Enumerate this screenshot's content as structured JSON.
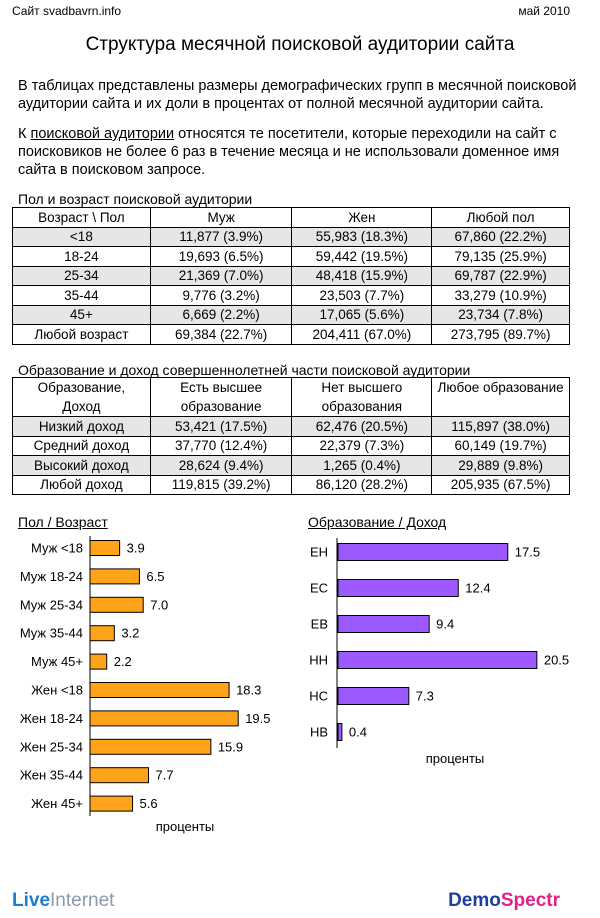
{
  "header": {
    "site": "Сайт svadbavrn.info",
    "date": "май 2010",
    "title": "Структура месячной поисковой аудитории сайта"
  },
  "intro": "В таблицах представлены размеры демографических групп в месячной поисковой аудитории сайта и их доли в процентах от полной месячной аудитории сайта.",
  "definition": {
    "prefix": "К ",
    "term": "поисковой аудитории",
    "rest": " относятся те посетители, которые переходили на сайт с поисковиков не более 6 раз в течение месяца и не использовали доменное имя сайта в поисковом запросе."
  },
  "table1": {
    "title": "Пол и возраст поисковой аудитории",
    "headers": [
      "Возраст \\ Пол",
      "Муж",
      "Жен",
      "Любой пол"
    ],
    "rows": [
      [
        "<18",
        "11,877 (3.9%)",
        "55,983 (18.3%)",
        "67,860 (22.2%)"
      ],
      [
        "18-24",
        "19,693 (6.5%)",
        "59,442 (19.5%)",
        "79,135 (25.9%)"
      ],
      [
        "25-34",
        "21,369 (7.0%)",
        "48,418 (15.9%)",
        "69,787 (22.9%)"
      ],
      [
        "35-44",
        "9,776 (3.2%)",
        "23,503 (7.7%)",
        "33,279 (10.9%)"
      ],
      [
        "45+",
        "6,669 (2.2%)",
        "17,065 (5.6%)",
        "23,734 (7.8%)"
      ],
      [
        "Любой возраст",
        "69,384 (22.7%)",
        "204,411 (67.0%)",
        "273,795 (89.7%)"
      ]
    ]
  },
  "table2": {
    "title": "Образование и доход совершеннолетней части поисковой аудитории",
    "headers": [
      [
        "Образование,",
        "Доход"
      ],
      [
        "Есть высшее",
        "образование"
      ],
      [
        "Нет высшего",
        "образования"
      ],
      [
        "Любое образование",
        ""
      ]
    ],
    "rows": [
      [
        "Низкий доход",
        "53,421 (17.5%)",
        "62,476 (20.5%)",
        "115,897 (38.0%)"
      ],
      [
        "Средний доход",
        "37,770 (12.4%)",
        "22,379 (7.3%)",
        "60,149 (19.7%)"
      ],
      [
        "Высокий доход",
        "28,624 (9.4%)",
        "1,265 (0.4%)",
        "29,889 (9.8%)"
      ],
      [
        "Любой доход",
        "119,815 (39.2%)",
        "86,120 (28.2%)",
        "205,935 (67.5%)"
      ]
    ]
  },
  "chart_data": [
    {
      "type": "bar",
      "orientation": "horizontal",
      "title": "Пол / Возраст",
      "xlabel": "проценты",
      "categories": [
        "Муж <18",
        "Муж 18-24",
        "Муж 25-34",
        "Муж 35-44",
        "Муж 45+",
        "Жен <18",
        "Жен 18-24",
        "Жен 25-34",
        "Жен 35-44",
        "Жен 45+"
      ],
      "values": [
        3.9,
        6.5,
        7.0,
        3.2,
        2.2,
        18.3,
        19.5,
        15.9,
        7.7,
        5.6
      ],
      "value_labels": [
        "3.9",
        "6.5",
        "7.0",
        "3.2",
        "2.2",
        "18.3",
        "19.5",
        "15.9",
        "7.7",
        "5.6"
      ],
      "xlim": [
        0,
        20
      ],
      "color": "#ffa31a"
    },
    {
      "type": "bar",
      "orientation": "horizontal",
      "title": "Образование / Доход",
      "xlabel": "проценты",
      "categories": [
        "ЕН",
        "ЕС",
        "ЕВ",
        "НН",
        "НС",
        "НВ"
      ],
      "values": [
        17.5,
        12.4,
        9.4,
        20.5,
        7.3,
        0.4
      ],
      "value_labels": [
        "17.5",
        "12.4",
        "9.4",
        "20.5",
        "7.3",
        "0.4"
      ],
      "xlim": [
        0,
        20.5
      ],
      "color": "#9b59ff"
    }
  ],
  "footer": {
    "logo_left_a": "Live",
    "logo_left_b": "Internet",
    "logo_right_a": "Demo",
    "logo_right_b": "Spectr"
  }
}
